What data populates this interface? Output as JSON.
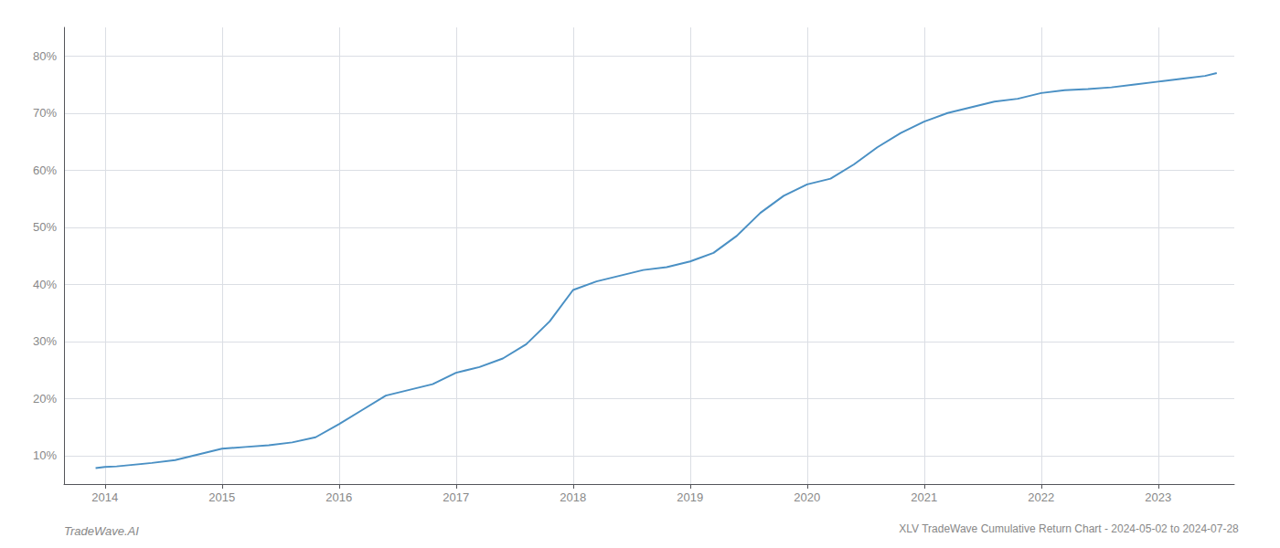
{
  "chart_data": {
    "type": "line",
    "title": "XLV TradeWave Cumulative Return Chart - 2024-05-02 to 2024-07-28",
    "annotations": [
      "TradeWave.AI"
    ],
    "x": [
      2013.92,
      2014.0,
      2014.1,
      2014.2,
      2014.4,
      2014.6,
      2014.8,
      2015.0,
      2015.2,
      2015.4,
      2015.6,
      2015.8,
      2016.0,
      2016.2,
      2016.4,
      2016.6,
      2016.8,
      2017.0,
      2017.2,
      2017.4,
      2017.6,
      2017.8,
      2018.0,
      2018.2,
      2018.4,
      2018.6,
      2018.8,
      2019.0,
      2019.2,
      2019.4,
      2019.6,
      2019.8,
      2020.0,
      2020.2,
      2020.4,
      2020.6,
      2020.8,
      2021.0,
      2021.2,
      2021.4,
      2021.6,
      2021.8,
      2022.0,
      2022.2,
      2022.4,
      2022.6,
      2022.8,
      2023.0,
      2023.2,
      2023.4,
      2023.5
    ],
    "values": [
      7.8,
      8.0,
      8.1,
      8.3,
      8.7,
      9.2,
      10.2,
      11.2,
      11.5,
      11.8,
      12.3,
      13.2,
      15.5,
      18.0,
      20.5,
      21.5,
      22.5,
      24.5,
      25.5,
      27.0,
      29.5,
      33.5,
      39.0,
      40.5,
      41.5,
      42.5,
      43.0,
      44.0,
      45.5,
      48.5,
      52.5,
      55.5,
      57.5,
      58.5,
      61.0,
      64.0,
      66.5,
      68.5,
      70.0,
      71.0,
      72.0,
      72.5,
      73.5,
      74.0,
      74.2,
      74.5,
      75.0,
      75.5,
      76.0,
      76.5,
      77.0
    ],
    "color": "#4a90c4",
    "xlim": [
      2013.65,
      2023.65
    ],
    "xticks": [
      2014,
      2015,
      2016,
      2017,
      2018,
      2019,
      2020,
      2021,
      2022,
      2023
    ],
    "ylim": [
      5,
      85
    ],
    "yticks": [
      {
        "value": 10,
        "label": "10%"
      },
      {
        "value": 20,
        "label": "20%"
      },
      {
        "value": 30,
        "label": "30%"
      },
      {
        "value": 40,
        "label": "40%"
      },
      {
        "value": 50,
        "label": "50%"
      },
      {
        "value": 60,
        "label": "60%"
      },
      {
        "value": 70,
        "label": "70%"
      },
      {
        "value": 80,
        "label": "80%"
      }
    ],
    "grid": true
  }
}
